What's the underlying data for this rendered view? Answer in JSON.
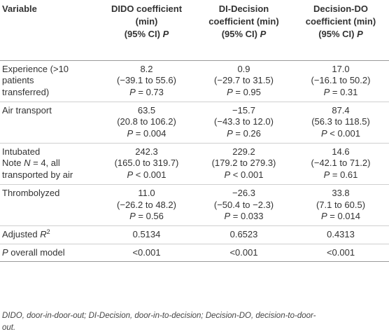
{
  "header": {
    "variable": "Variable",
    "col1": [
      "DIDO coefficient",
      "(min)",
      "(95% CI)",
      "P"
    ],
    "col2": [
      "DI-Decision",
      "coefficient (min)",
      "(95% CI)",
      "P"
    ],
    "col3": [
      "Decision-DO",
      "coefficient (min)",
      "(95% CI)",
      "P"
    ]
  },
  "rows": [
    {
      "label": [
        "Experience (>10",
        "patients",
        "transferred)"
      ],
      "dido": [
        "8.2",
        "(−39.1 to 55.6)",
        "= 0.73"
      ],
      "di": [
        "0.9",
        "(−29.7 to 31.5)",
        "= 0.95"
      ],
      "ddo": [
        "17.0",
        "(−16.1 to 50.2)",
        "= 0.31"
      ]
    },
    {
      "label": [
        "Air transport"
      ],
      "dido": [
        "63.5",
        "(20.8 to 106.2)",
        "= 0.004"
      ],
      "di": [
        "−15.7",
        "(−43.3 to 12.0)",
        "= 0.26"
      ],
      "ddo": [
        "87.4",
        "(56.3 to 118.5)",
        "< 0.001"
      ]
    },
    {
      "label": [
        "Intubated",
        "Note",
        "= 4, all",
        "transported by air"
      ],
      "dido": [
        "242.3",
        "(165.0 to 319.7)",
        "< 0.001"
      ],
      "di": [
        "229.2",
        "(179.2 to 279.3)",
        "< 0.001"
      ],
      "ddo": [
        "14.6",
        "(−42.1 to 71.2)",
        "= 0.61"
      ]
    },
    {
      "label": [
        "Thrombolyzed"
      ],
      "dido": [
        "11.0",
        "(−26.2 to 48.2)",
        "= 0.56"
      ],
      "di": [
        "−26.3",
        "(−50.4 to −2.3)",
        "= 0.033"
      ],
      "ddo": [
        "33.8",
        "(7.1 to 60.5)",
        "= 0.014"
      ]
    }
  ],
  "adjusted": {
    "label": "Adjusted",
    "sym": "R",
    "sup": "2",
    "values": [
      "0.5134",
      "0.6523",
      "0.4313"
    ]
  },
  "overall": {
    "sym": "P",
    "label": "overall model",
    "values": [
      "<0.001",
      "<0.001",
      "<0.001"
    ]
  },
  "letters": {
    "p": "P",
    "n": "N"
  },
  "footnote": [
    "DIDO, door-in-door-out; DI-Decision, door-in-to-decision; Decision-DO, decision-to-door-",
    "out."
  ]
}
